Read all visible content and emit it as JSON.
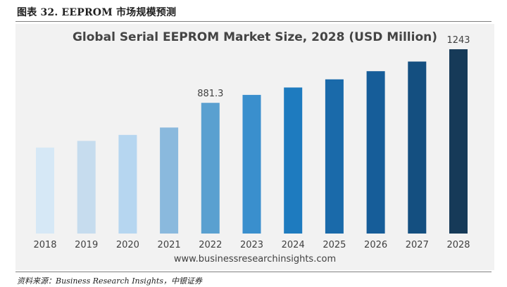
{
  "figure": {
    "caption": "图表 32.  EEPROM 市场规模预测",
    "source": "资料来源：Business Research Insights，中银证券"
  },
  "chart_data": {
    "type": "bar",
    "title": "Global Serial EEPROM Market Size, 2028 (USD Million)",
    "xlabel": "",
    "ylabel": "",
    "categories": [
      "2018",
      "2019",
      "2020",
      "2021",
      "2022",
      "2023",
      "2024",
      "2025",
      "2026",
      "2027",
      "2028"
    ],
    "values": [
      580,
      625,
      665,
      715,
      881.3,
      935,
      985,
      1040,
      1095,
      1160,
      1243
    ],
    "data_labels": [
      "",
      "",
      "",
      "",
      "881.3",
      "",
      "",
      "",
      "",
      "",
      "1243"
    ],
    "ylim": [
      0,
      1300
    ],
    "grid": false,
    "legend": "none",
    "colors": [
      "#d6e8f6",
      "#c6dcee",
      "#b6d6f0",
      "#8ab9dd",
      "#5aa0d0",
      "#3a8fcd",
      "#1e7bbf",
      "#1a6aaa",
      "#165d99",
      "#144f80",
      "#163a58"
    ],
    "footer": "www.businessresearchinsights.com"
  }
}
